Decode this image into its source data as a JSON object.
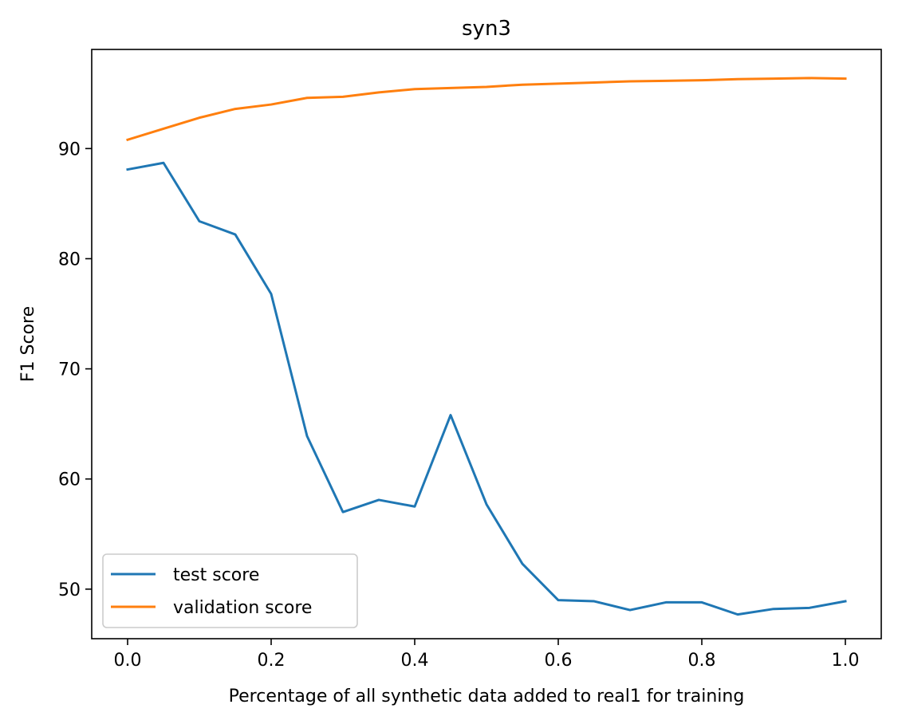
{
  "chart_data": {
    "type": "line",
    "title": "syn3",
    "xlabel": "Percentage of all synthetic data added to real1 for training",
    "ylabel": "F1 Score",
    "xlim": [
      -0.05,
      1.05
    ],
    "ylim": [
      45.5,
      99.0
    ],
    "xticks": [
      "0.0",
      "0.2",
      "0.4",
      "0.6",
      "0.8",
      "1.0"
    ],
    "yticks": [
      "50",
      "60",
      "70",
      "80",
      "90"
    ],
    "grid": false,
    "legend_position": "lower-left",
    "x": [
      0.0,
      0.05,
      0.1,
      0.15,
      0.2,
      0.25,
      0.3,
      0.35,
      0.4,
      0.45,
      0.5,
      0.55,
      0.6,
      0.65,
      0.7,
      0.75,
      0.8,
      0.85,
      0.9,
      0.95,
      1.0
    ],
    "series": [
      {
        "name": "test score",
        "color": "#1f77b4",
        "values": [
          88.1,
          88.7,
          83.4,
          82.2,
          76.8,
          63.9,
          57.0,
          58.1,
          57.5,
          65.8,
          57.7,
          52.3,
          49.0,
          48.9,
          48.1,
          48.8,
          48.8,
          47.7,
          48.2,
          48.3,
          48.9
        ]
      },
      {
        "name": "validation score",
        "color": "#ff7f0e",
        "values": [
          90.8,
          91.8,
          92.8,
          93.6,
          94.0,
          94.6,
          94.7,
          95.1,
          95.4,
          95.5,
          95.6,
          95.8,
          95.9,
          96.0,
          96.1,
          96.15,
          96.2,
          96.3,
          96.35,
          96.4,
          96.35
        ]
      }
    ]
  }
}
